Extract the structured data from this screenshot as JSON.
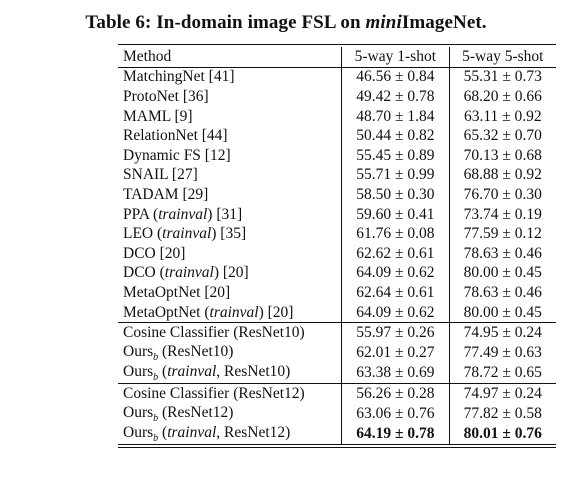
{
  "caption": {
    "prefix": "Table 6: In-domain image FSL on ",
    "mini": "mini",
    "suffix": "ImageNet."
  },
  "table": {
    "headers": [
      "Method",
      "5-way 1-shot",
      "5-way 5-shot"
    ],
    "rows": [
      {
        "method": "MatchingNet [41]",
        "one_shot": "46.56 ± 0.84",
        "five_shot": "55.31 ± 0.73"
      },
      {
        "method": "ProtoNet [36]",
        "one_shot": "49.42 ± 0.78",
        "five_shot": "68.20 ± 0.66"
      },
      {
        "method": "MAML [9]",
        "one_shot": "48.70 ± 1.84",
        "five_shot": "63.11 ± 0.92"
      },
      {
        "method": "RelationNet [44]",
        "one_shot": "50.44 ± 0.82",
        "five_shot": "65.32 ± 0.70"
      },
      {
        "method": "Dynamic FS [12]",
        "one_shot": "55.45 ± 0.89",
        "five_shot": "70.13 ± 0.68"
      },
      {
        "method": "SNAIL [27]",
        "one_shot": "55.71 ± 0.99",
        "five_shot": "68.88 ± 0.92"
      },
      {
        "method": "TADAM [29]",
        "one_shot": "58.50 ± 0.30",
        "five_shot": "76.70 ± 0.30"
      },
      {
        "method_pre": "PPA (",
        "method_it": "trainval",
        "method_post": ") [31]",
        "one_shot": "59.60 ± 0.41",
        "five_shot": "73.74 ± 0.19"
      },
      {
        "method_pre": "LEO (",
        "method_it": "trainval",
        "method_post": ") [35]",
        "one_shot": "61.76 ± 0.08",
        "five_shot": "77.59 ± 0.12"
      },
      {
        "method": "DCO [20]",
        "one_shot": "62.62 ± 0.61",
        "five_shot": "78.63 ± 0.46"
      },
      {
        "method_pre": "DCO (",
        "method_it": "trainval",
        "method_post": ") [20]",
        "one_shot": "64.09 ± 0.62",
        "five_shot": "80.00 ± 0.45"
      },
      {
        "method": "MetaOptNet [20]",
        "one_shot": "62.64 ± 0.61",
        "five_shot": "78.63 ± 0.46"
      },
      {
        "method_pre": "MetaOptNet (",
        "method_it": "trainval",
        "method_post": ") [20]",
        "one_shot": "64.09 ± 0.62",
        "five_shot": "80.00 ± 0.45"
      },
      {
        "method": "Cosine Classifier (ResNet10)",
        "one_shot": "55.97 ± 0.26",
        "five_shot": "74.95 ± 0.24"
      },
      {
        "method_pre": "Ours",
        "sub": "b",
        "method_post": " (ResNet10)",
        "one_shot": "62.01 ± 0.27",
        "five_shot": "77.49 ± 0.63"
      },
      {
        "method_pre": "Ours",
        "sub": "b",
        "method_mid": " (",
        "method_it": "trainval",
        "method_post": ", ResNet10)",
        "one_shot": "63.38 ± 0.69",
        "five_shot": "78.72 ± 0.65"
      },
      {
        "method": "Cosine Classifier (ResNet12)",
        "one_shot": "56.26 ± 0.28",
        "five_shot": "74.97 ± 0.24"
      },
      {
        "method_pre": "Ours",
        "sub": "b",
        "method_post": " (ResNet12)",
        "one_shot": "63.06 ± 0.76",
        "five_shot": "77.82 ± 0.58"
      },
      {
        "method_pre": "Ours",
        "sub": "b",
        "method_mid": " (",
        "method_it": "trainval",
        "method_post": ", ResNet12)",
        "one_shot": "64.19 ± 0.78",
        "five_shot": "80.01 ± 0.76"
      }
    ]
  }
}
